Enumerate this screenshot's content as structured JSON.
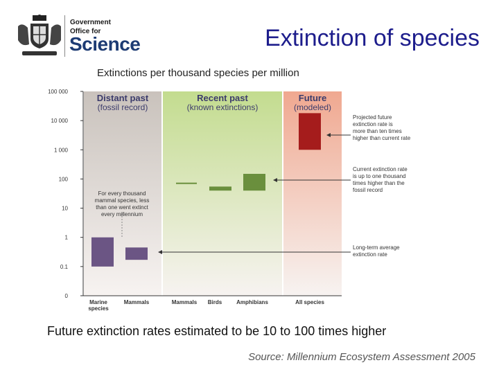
{
  "logo": {
    "line1": "Government",
    "line2": "Office for",
    "line3": "Science"
  },
  "title": "Extinction of species",
  "subtitle": "Extinctions per thousand species per million",
  "caption": "Future extinction rates estimated to be 10 to 100 times higher",
  "source": "Source: Millennium Ecosystem Assessment 2005",
  "chart_data": {
    "type": "bar",
    "scale": "log",
    "ylabel": "",
    "y_ticks": [
      {
        "label": "100 000",
        "value": 100000
      },
      {
        "label": "10 000",
        "value": 10000
      },
      {
        "label": "1 000",
        "value": 1000
      },
      {
        "label": "100",
        "value": 100
      },
      {
        "label": "10",
        "value": 10
      },
      {
        "label": "1",
        "value": 1
      },
      {
        "label": "0.1",
        "value": 0.1
      },
      {
        "label": "0",
        "value": 0.01
      }
    ],
    "panels": [
      {
        "title": "Distant past",
        "subtitle": "(fossil record)",
        "color": "#c9c2bc"
      },
      {
        "title": "Recent past",
        "subtitle": "(known extinctions)",
        "color": "#c3dc8f"
      },
      {
        "title": "Future",
        "subtitle": "(modeled)",
        "color": "#f0a890"
      }
    ],
    "bars": [
      {
        "label": "Marine species",
        "panel": 0,
        "low": 0.1,
        "high": 1,
        "color": "#6b5584"
      },
      {
        "label": "Mammals",
        "panel": 0,
        "low": 0.17,
        "high": 0.45,
        "color": "#6b5584"
      },
      {
        "label": "Mammals",
        "panel": 1,
        "low": 70,
        "high": 75,
        "color": "#6a8f3d"
      },
      {
        "label": "Birds",
        "panel": 1,
        "low": 40,
        "high": 55,
        "color": "#6a8f3d"
      },
      {
        "label": "Amphibians",
        "panel": 1,
        "low": 40,
        "high": 150,
        "color": "#6a8f3d"
      },
      {
        "label": "All species",
        "panel": 2,
        "low": 1000,
        "high": 18000,
        "color": "#a51c1c"
      }
    ],
    "annotations": {
      "distant": [
        "For every thousand",
        "mammal species, less",
        "than one went extinct",
        "every millennium"
      ],
      "projected": [
        "Projected future",
        "extinction rate is",
        "more than ten times",
        "higher than current rate"
      ],
      "current": [
        "Current extinction rate",
        "is up to one thousand",
        "times higher than the",
        "fossil record"
      ],
      "longterm": [
        "Long-term average",
        "extinction rate"
      ]
    }
  }
}
